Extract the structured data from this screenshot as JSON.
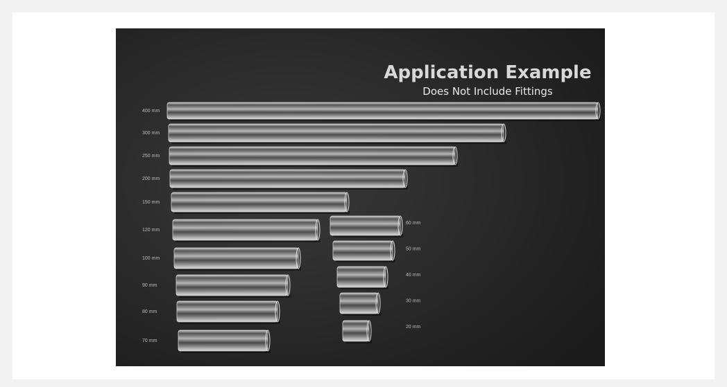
{
  "image": {
    "title": "Application Example",
    "subtitle": "Does Not Include Fittings",
    "left_tubes": [
      {
        "label": "400 mm"
      },
      {
        "label": "300 mm"
      },
      {
        "label": "250 mm"
      },
      {
        "label": "200 mm"
      },
      {
        "label": "150 mm"
      },
      {
        "label": "120 mm"
      },
      {
        "label": "100 mm"
      },
      {
        "label": "90 mm"
      },
      {
        "label": "80 mm"
      },
      {
        "label": "70 mm"
      }
    ],
    "right_tubes": [
      {
        "label": "60 mm"
      },
      {
        "label": "50 mm"
      },
      {
        "label": "40 mm"
      },
      {
        "label": "30 mm"
      },
      {
        "label": "20 mm"
      }
    ]
  }
}
